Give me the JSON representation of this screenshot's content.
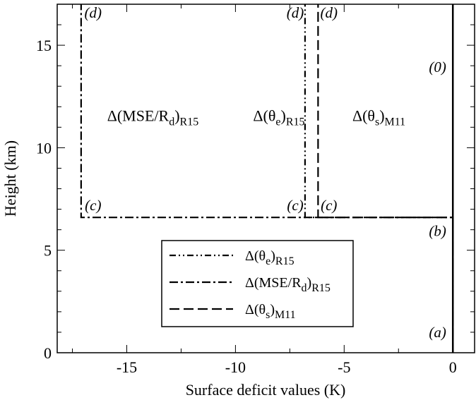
{
  "chart_data": {
    "type": "line",
    "xlabel": "Surface deficit values (K)",
    "ylabel": "Height (km)",
    "xlim": [
      -18.2,
      1
    ],
    "ylim": [
      0,
      17
    ],
    "x_ticks": [
      -15,
      -10,
      -5,
      0
    ],
    "x_tick_labels": [
      "-15",
      "-10",
      "-5",
      "0"
    ],
    "y_ticks": [
      0,
      5,
      10,
      15
    ],
    "y_tick_labels": [
      "0",
      "5",
      "10",
      "15"
    ],
    "grid": false,
    "legend_position": "bottom-center",
    "series": [
      {
        "id": "theta_e",
        "legend_main": "Δ(θ",
        "legend_sub1": "e",
        "legend_mid": ")",
        "legend_sub2": "R15",
        "dash": "dash-dot-dot",
        "x": [
          0,
          0,
          -6.8,
          -6.8
        ],
        "y": [
          0,
          6.6,
          6.6,
          17
        ]
      },
      {
        "id": "mse",
        "legend_main": "Δ(MSE/R",
        "legend_sub1": "d",
        "legend_mid": ")",
        "legend_sub2": "R15",
        "dash": "dash-dot",
        "x": [
          0,
          0,
          -17.1,
          -17.1
        ],
        "y": [
          0,
          6.6,
          6.6,
          17
        ]
      },
      {
        "id": "theta_s",
        "legend_main": "Δ(θ",
        "legend_sub1": "s",
        "legend_mid": ")",
        "legend_sub2": "M11",
        "dash": "dashed",
        "x": [
          0,
          0,
          -6.2,
          -6.2
        ],
        "y": [
          0,
          6.6,
          6.6,
          17
        ]
      },
      {
        "id": "zero",
        "dash": "solid",
        "x": [
          0,
          0
        ],
        "y": [
          0,
          17
        ]
      }
    ],
    "point_annotations": [
      {
        "text": "(d)",
        "x": -16.55,
        "y": 16.35
      },
      {
        "text": "(d)",
        "x": -7.25,
        "y": 16.35
      },
      {
        "text": "(d)",
        "x": -5.7,
        "y": 16.35
      },
      {
        "text": "(0)",
        "x": -0.7,
        "y": 13.7
      },
      {
        "text": "(c)",
        "x": -16.55,
        "y": 6.95
      },
      {
        "text": "(c)",
        "x": -7.25,
        "y": 6.95
      },
      {
        "text": "(c)",
        "x": -5.7,
        "y": 6.95
      },
      {
        "text": "(b)",
        "x": -0.7,
        "y": 5.7
      },
      {
        "text": "(a)",
        "x": -0.7,
        "y": 0.75
      }
    ],
    "series_labels": [
      {
        "main": "Δ(MSE/R",
        "sub1": "d",
        "mid": ")",
        "sub2": "R15",
        "x": -13.8,
        "y": 11.3
      },
      {
        "main": "Δ(θ",
        "sub1": "e",
        "mid": ")",
        "sub2": "R15",
        "x": -8.0,
        "y": 11.3
      },
      {
        "main": "Δ(θ",
        "sub1": "s",
        "mid": ")",
        "sub2": "M11",
        "x": -3.4,
        "y": 11.3
      }
    ]
  }
}
